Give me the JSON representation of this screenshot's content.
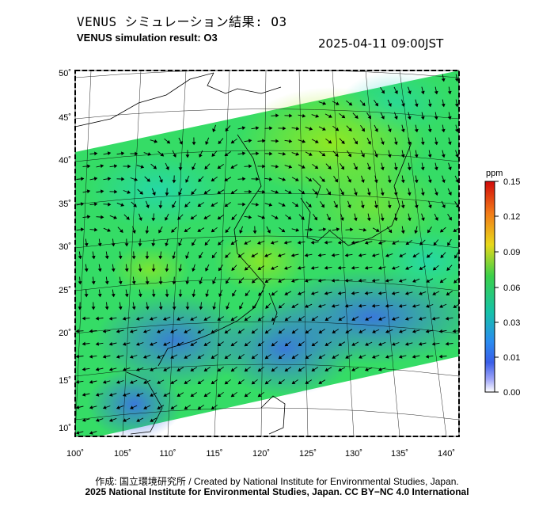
{
  "header": {
    "title_jp": "VENUS シミュレーション結果: O3",
    "title_en": "VENUS simulation result: O3",
    "timestamp": "2025-04-11 09:00JST"
  },
  "map": {
    "lat_labels": [
      "50˚",
      "45˚",
      "40˚",
      "35˚",
      "30˚",
      "25˚",
      "20˚",
      "15˚",
      "10˚"
    ],
    "lon_labels": [
      "100˚",
      "105˚",
      "110˚",
      "115˚",
      "120˚",
      "125˚",
      "130˚",
      "135˚",
      "140˚"
    ],
    "field_colors": {
      "low": "#3a7fe0",
      "mid": "#22d39a",
      "high": "#3ae84a",
      "peak": "#9be818"
    }
  },
  "colorbar": {
    "unit": "ppm",
    "ticks": [
      "0.15",
      "0.12",
      "0.09",
      "0.06",
      "0.03",
      "0.01",
      "0.00"
    ],
    "gradient": [
      "#d10a0a",
      "#f27a18",
      "#e8d81a",
      "#3ad04a",
      "#16c2a8",
      "#2a8cf0",
      "#3a5ee8",
      "#9fa5f8",
      "#ffffff"
    ]
  },
  "credits": {
    "line1": "作成: 国立環境研究所 / Created by National Institute for Environmental Studies, Japan.",
    "line2": "2025 National Institute for Environmental Studies, Japan. CC BY−NC 4.0 International"
  }
}
